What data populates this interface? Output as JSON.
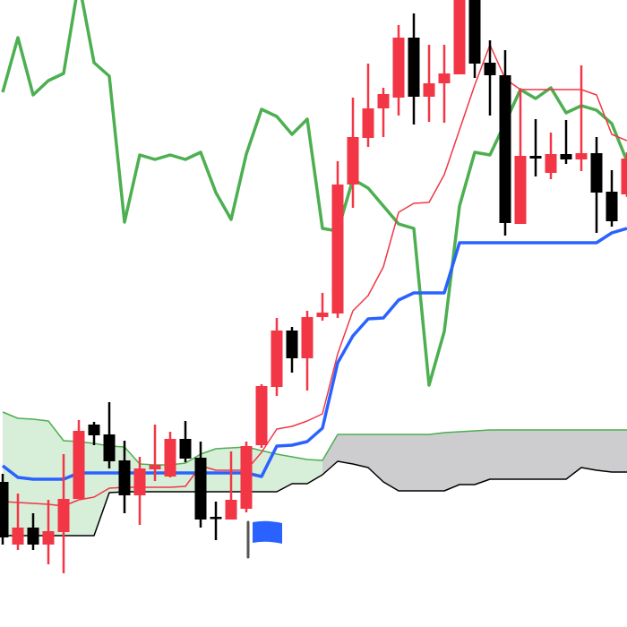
{
  "chart_data": {
    "type": "candlestick-ichimoku",
    "title": "",
    "xlabel": "",
    "ylabel": "",
    "ylim": [
      0,
      700
    ],
    "grid": false,
    "legend": "none",
    "colors": {
      "up_candle": "#f23645",
      "down_candle": "#000000",
      "tenkan": "#f23645",
      "kijun": "#2962ff",
      "chikou": "#4caf50",
      "senkou_a": "#4caf50",
      "senkou_b": "#000000",
      "cloud_green": "#d7eed8",
      "cloud_grey": "#cdcdd0",
      "marker": "#2962ff",
      "marker_pole": "#555555"
    },
    "candles": [
      [
        162,
        171,
        92,
        100
      ],
      [
        92,
        149,
        86,
        111
      ],
      [
        111,
        127,
        86,
        92
      ],
      [
        92,
        142,
        70,
        107
      ],
      [
        106,
        193,
        60,
        143
      ],
      [
        143,
        231,
        143,
        219
      ],
      [
        226,
        229,
        203,
        214
      ],
      [
        215,
        251,
        177,
        185
      ],
      [
        186,
        208,
        127,
        147
      ],
      [
        147,
        190,
        114,
        177
      ],
      [
        176,
        226,
        163,
        181
      ],
      [
        168,
        218,
        167,
        210
      ],
      [
        210,
        230,
        184,
        188
      ],
      [
        189,
        207,
        111,
        120
      ],
      [
        123,
        140,
        97,
        122
      ],
      [
        120,
        196,
        120,
        142
      ],
      [
        132,
        207,
        128,
        202
      ],
      [
        203,
        271,
        200,
        269
      ],
      [
        268,
        345,
        258,
        331
      ],
      [
        331,
        335,
        284,
        300
      ],
      [
        300,
        353,
        264,
        346
      ],
      [
        346,
        373,
        342,
        351
      ],
      [
        350,
        520,
        345,
        494
      ],
      [
        494,
        591,
        468,
        547
      ],
      [
        546,
        629,
        536,
        579
      ],
      [
        579,
        602,
        547,
        595
      ],
      [
        591,
        672,
        571,
        658
      ],
      [
        658,
        685,
        561,
        592
      ],
      [
        592,
        650,
        564,
        607
      ],
      [
        607,
        650,
        563,
        618
      ],
      [
        617,
        720,
        617,
        710
      ],
      [
        715,
        720,
        613,
        629
      ],
      [
        630,
        655,
        571,
        616
      ],
      [
        616,
        644,
        437,
        451
      ],
      [
        450,
        600,
        450,
        526
      ],
      [
        526,
        567,
        503,
        523
      ],
      [
        507,
        552,
        500,
        528
      ],
      [
        528,
        566,
        517,
        522
      ],
      [
        522,
        627,
        509,
        529
      ],
      [
        529,
        547,
        440,
        485
      ],
      [
        486,
        510,
        447,
        453
      ],
      [
        483,
        530,
        480,
        523
      ]
    ],
    "tenkan": [
      140,
      139,
      138,
      137,
      135,
      142,
      145,
      155,
      156,
      156,
      156,
      156,
      157,
      180,
      175,
      175,
      175,
      195,
      221,
      224,
      230,
      238,
      305,
      353,
      370,
      402,
      463,
      473,
      474,
      505,
      555,
      605,
      650,
      612,
      600,
      600,
      600,
      600,
      600,
      594,
      550,
      543
    ],
    "kijun": [
      180,
      167,
      165,
      165,
      165,
      172,
      172,
      172,
      172,
      172,
      172,
      172,
      172,
      172,
      172,
      172,
      172,
      168,
      202,
      203,
      207,
      222,
      295,
      325,
      344,
      345,
      365,
      373,
      373,
      373,
      429,
      429,
      429,
      429,
      429,
      429,
      429,
      429,
      429,
      429,
      440,
      445
    ],
    "chikou": [
      597,
      658,
      594,
      610,
      618,
      720,
      630,
      615,
      452,
      527,
      522,
      527,
      522,
      530,
      485,
      455,
      528,
      578,
      570,
      550,
      567,
      445,
      442,
      500,
      490,
      470,
      450,
      445,
      270,
      330,
      470,
      530,
      527,
      563,
      600,
      590,
      602,
      574,
      582,
      577,
      562,
      520
    ],
    "senkou_a": [
      240,
      233,
      232,
      230,
      208,
      207,
      205,
      202,
      201,
      182,
      181,
      181,
      183,
      193,
      199,
      200,
      201,
      197,
      193,
      190,
      187,
      186,
      215,
      215,
      215,
      215,
      215,
      215,
      215,
      217,
      218,
      219,
      220,
      220,
      220,
      220,
      220,
      220,
      220,
      220,
      220,
      220
    ],
    "senkou_b": [
      102,
      102,
      102,
      102,
      102,
      102,
      102,
      150,
      151,
      151,
      151,
      151,
      151,
      151,
      151,
      151,
      151,
      151,
      151,
      160,
      160,
      170,
      185,
      182,
      178,
      162,
      152,
      152,
      152,
      152,
      159,
      159,
      165,
      165,
      165,
      165,
      165,
      165,
      178,
      175,
      173,
      173
    ],
    "cloud_shade_change_index": 21,
    "marker": {
      "type": "flag",
      "candle_index": 16
    }
  }
}
